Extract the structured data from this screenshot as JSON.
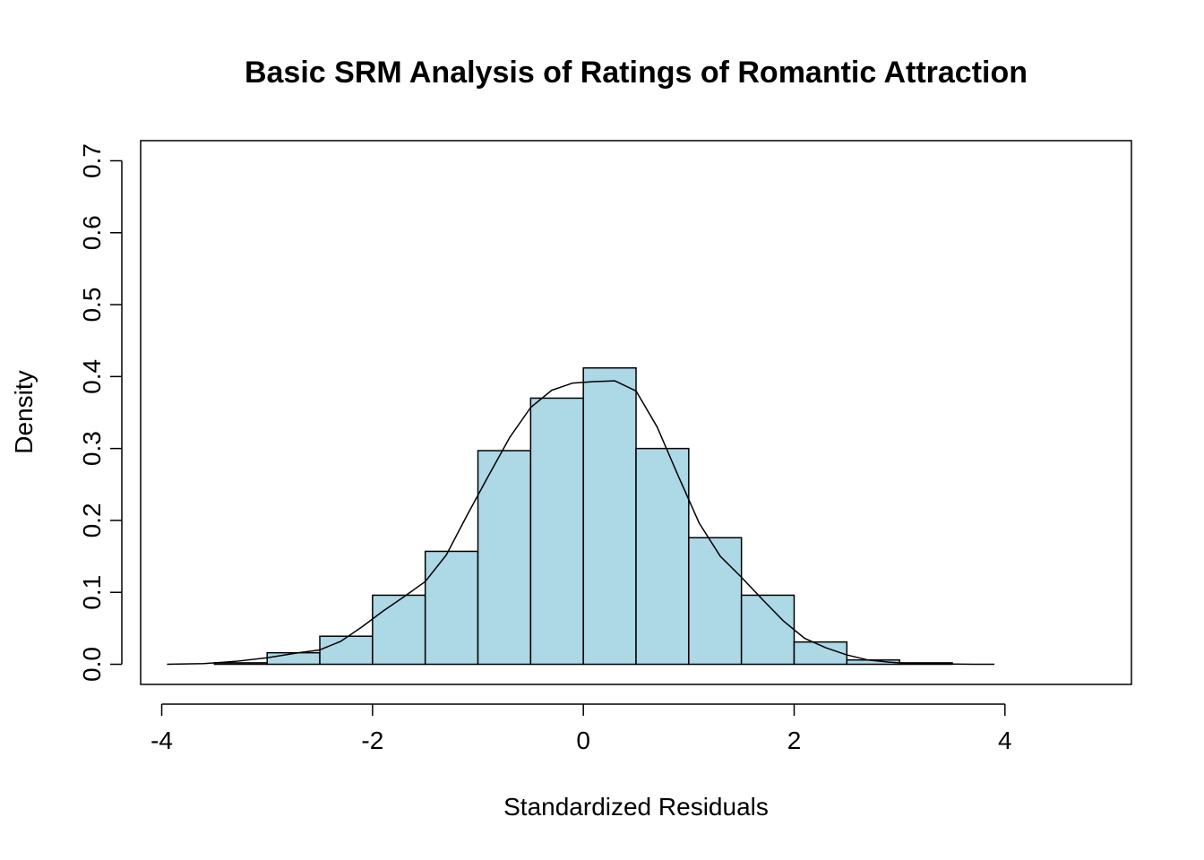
{
  "chart_data": {
    "type": "bar",
    "subtype": "histogram",
    "title": "Basic SRM Analysis of Ratings of Romantic Attraction",
    "xlabel": "Standardized Residuals",
    "ylabel": "Density",
    "xlim": [
      -4.2,
      5.2
    ],
    "ylim": [
      -0.028,
      0.728
    ],
    "x_ticks": [
      -4,
      -2,
      0,
      2,
      4
    ],
    "x_tick_labels": [
      "-4",
      "-2",
      "0",
      "2",
      "4"
    ],
    "y_ticks": [
      0.0,
      0.1,
      0.2,
      0.3,
      0.4,
      0.5,
      0.6,
      0.7
    ],
    "y_tick_labels": [
      "0.0",
      "0.1",
      "0.2",
      "0.3",
      "0.4",
      "0.5",
      "0.6",
      "0.7"
    ],
    "bins": [
      {
        "x0": -3.5,
        "x1": -3.0,
        "density": 0.002
      },
      {
        "x0": -3.0,
        "x1": -2.5,
        "density": 0.016
      },
      {
        "x0": -2.5,
        "x1": -2.0,
        "density": 0.039
      },
      {
        "x0": -2.0,
        "x1": -1.5,
        "density": 0.096
      },
      {
        "x0": -1.5,
        "x1": -1.0,
        "density": 0.157
      },
      {
        "x0": -1.0,
        "x1": -0.5,
        "density": 0.297
      },
      {
        "x0": -0.5,
        "x1": 0.0,
        "density": 0.37
      },
      {
        "x0": 0.0,
        "x1": 0.5,
        "density": 0.412
      },
      {
        "x0": 0.5,
        "x1": 1.0,
        "density": 0.3
      },
      {
        "x0": 1.0,
        "x1": 1.5,
        "density": 0.176
      },
      {
        "x0": 1.5,
        "x1": 2.0,
        "density": 0.096
      },
      {
        "x0": 2.0,
        "x1": 2.5,
        "density": 0.031
      },
      {
        "x0": 2.5,
        "x1": 3.0,
        "density": 0.006
      },
      {
        "x0": 3.0,
        "x1": 3.5,
        "density": 0.002
      }
    ],
    "bar_color": "#ADD8E6",
    "bar_edge_color": "#000000",
    "density_curve": {
      "x": [
        -3.95,
        -3.6,
        -3.3,
        -3.0,
        -2.7,
        -2.5,
        -2.3,
        -2.1,
        -1.9,
        -1.7,
        -1.5,
        -1.3,
        -1.1,
        -0.9,
        -0.7,
        -0.5,
        -0.3,
        -0.1,
        0.1,
        0.3,
        0.5,
        0.7,
        0.9,
        1.1,
        1.3,
        1.5,
        1.7,
        1.9,
        2.1,
        2.3,
        2.5,
        2.7,
        2.9,
        3.1,
        3.4,
        3.7,
        3.9
      ],
      "y": [
        0.0,
        0.001,
        0.004,
        0.009,
        0.016,
        0.02,
        0.032,
        0.052,
        0.074,
        0.094,
        0.115,
        0.152,
        0.208,
        0.262,
        0.315,
        0.357,
        0.381,
        0.391,
        0.393,
        0.394,
        0.38,
        0.33,
        0.262,
        0.196,
        0.15,
        0.121,
        0.09,
        0.06,
        0.036,
        0.023,
        0.013,
        0.006,
        0.003,
        0.001,
        0.0005,
        0.0001,
        0.0
      ]
    },
    "grid": false,
    "legend": "none"
  }
}
